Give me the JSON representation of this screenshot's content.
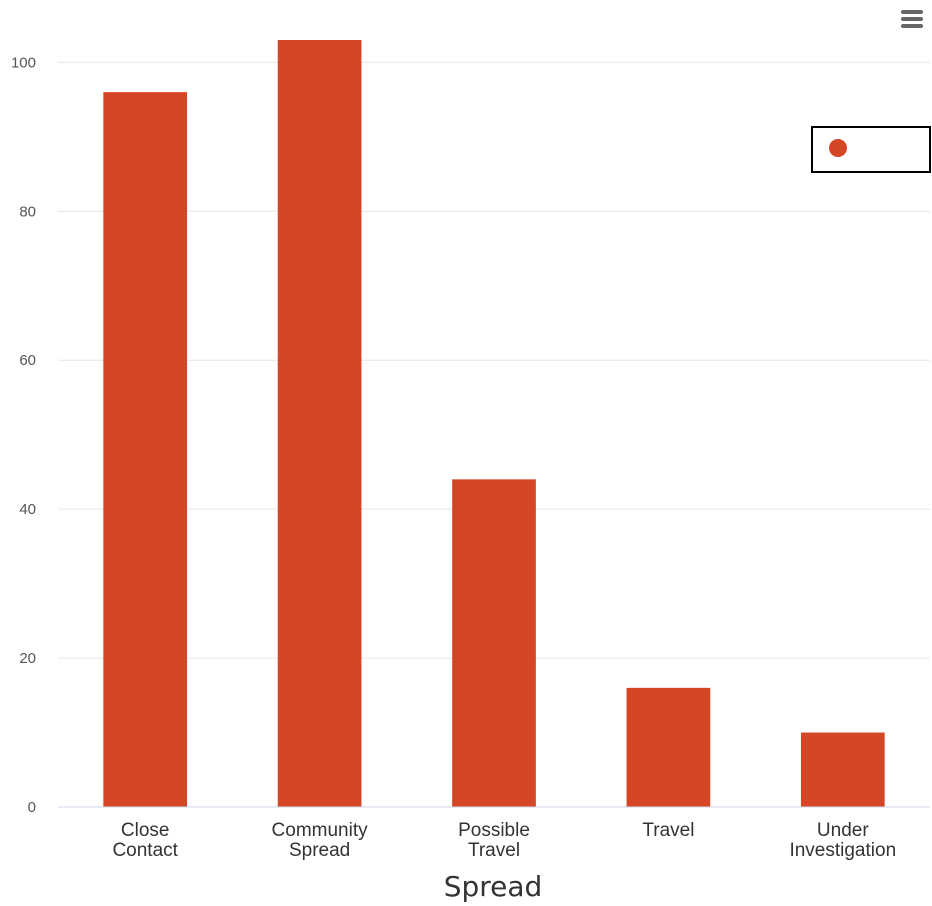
{
  "chart_data": {
    "type": "bar",
    "categories": [
      [
        "Close",
        "Contact"
      ],
      [
        "Community",
        "Spread"
      ],
      [
        "Possible",
        "Travel"
      ],
      [
        "Travel"
      ],
      [
        "Under",
        "Investigation"
      ]
    ],
    "values": [
      96,
      103,
      44,
      16,
      10
    ],
    "xlabel": "Spread",
    "ylabel": "",
    "ylim": [
      0,
      103
    ],
    "yticks": [
      0,
      20,
      40,
      60,
      80,
      100
    ],
    "grid": true,
    "legend": {
      "placement": "top-right",
      "entries": [
        ""
      ]
    },
    "colors": {
      "bar": "#D44625",
      "grid": "#e6e6e6",
      "axis": "#ccd6eb",
      "legend_border": "#000000"
    },
    "menu_icon": "hamburger-menu-icon"
  }
}
